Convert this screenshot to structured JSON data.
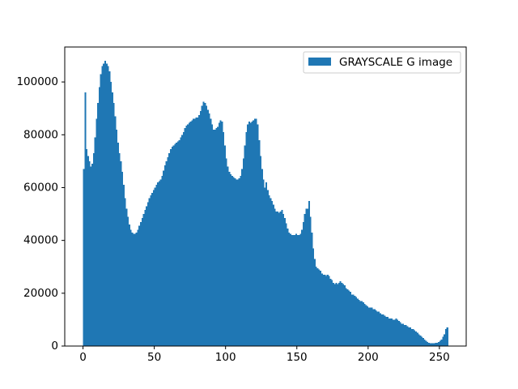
{
  "chart_data": {
    "type": "histogram",
    "legend_loc": "upper right",
    "color": "#1f77b4",
    "series": [
      {
        "name": "GRAYSCALE G image",
        "color": "#1f77b4",
        "values": [
          67000,
          96000,
          74500,
          72000,
          70000,
          68000,
          69000,
          73000,
          79000,
          86000,
          92000,
          98000,
          103000,
          106000,
          107000,
          108000,
          107000,
          106000,
          104000,
          100000,
          96000,
          92000,
          87000,
          82000,
          77000,
          73000,
          70000,
          66000,
          61000,
          56000,
          52000,
          49000,
          46000,
          44000,
          43000,
          42500,
          42500,
          43000,
          44000,
          45500,
          47000,
          48500,
          50000,
          51500,
          53000,
          54500,
          56000,
          57000,
          58000,
          59000,
          60000,
          61000,
          62000,
          62500,
          63000,
          64500,
          66500,
          68500,
          70000,
          71500,
          73000,
          74500,
          75500,
          76000,
          76500,
          77000,
          77500,
          78000,
          79000,
          80000,
          81000,
          82500,
          83500,
          84000,
          84500,
          85000,
          85500,
          86000,
          86000,
          86500,
          86500,
          87500,
          89000,
          91000,
          92500,
          92000,
          91000,
          89500,
          88000,
          86000,
          84000,
          82000,
          82000,
          82500,
          83000,
          84500,
          85500,
          85000,
          81000,
          76000,
          71000,
          68000,
          66000,
          65000,
          64500,
          64000,
          63500,
          63000,
          63000,
          63500,
          64500,
          67000,
          71000,
          76000,
          81000,
          84000,
          85000,
          84500,
          85000,
          85500,
          86000,
          86000,
          84000,
          78000,
          72000,
          67000,
          63000,
          60000,
          62000,
          59000,
          57000,
          56000,
          55000,
          53500,
          52000,
          51000,
          51000,
          50500,
          51000,
          51500,
          50000,
          48500,
          46500,
          44500,
          43000,
          42500,
          42000,
          42000,
          42000,
          42500,
          42000,
          42000,
          42500,
          44000,
          47000,
          50000,
          52000,
          52000,
          55000,
          49000,
          43000,
          37000,
          33000,
          30000,
          29500,
          29000,
          28500,
          27500,
          27000,
          27000,
          26500,
          27000,
          26500,
          25500,
          25000,
          24000,
          23500,
          24000,
          23500,
          24000,
          24500,
          24000,
          23500,
          23000,
          22000,
          21500,
          21000,
          20500,
          19500,
          19500,
          19000,
          18500,
          18000,
          17500,
          17000,
          17000,
          16500,
          16000,
          15500,
          15000,
          14500,
          14500,
          14500,
          14000,
          14000,
          13500,
          13000,
          13000,
          12500,
          12000,
          12000,
          11500,
          11000,
          11000,
          10500,
          10500,
          10500,
          10000,
          10000,
          10500,
          10000,
          9500,
          9000,
          8500,
          8500,
          8000,
          8000,
          7500,
          7000,
          7000,
          6500,
          6500,
          6000,
          5500,
          5000,
          4500,
          4000,
          3500,
          3000,
          2500,
          2000,
          1500,
          1200,
          1100,
          1000,
          1000,
          1100,
          1200,
          1300,
          1500,
          2000,
          2500,
          3500,
          4500,
          6500,
          7000
        ]
      }
    ],
    "bins": [
      0,
      1,
      2,
      3,
      4,
      5,
      6,
      7,
      8,
      9,
      10,
      11,
      12,
      13,
      14,
      15,
      16,
      17,
      18,
      19,
      20,
      21,
      22,
      23,
      24,
      25,
      26,
      27,
      28,
      29,
      30,
      31,
      32,
      33,
      34,
      35,
      36,
      37,
      38,
      39,
      40,
      41,
      42,
      43,
      44,
      45,
      46,
      47,
      48,
      49,
      50,
      51,
      52,
      53,
      54,
      55,
      56,
      57,
      58,
      59,
      60,
      61,
      62,
      63,
      64,
      65,
      66,
      67,
      68,
      69,
      70,
      71,
      72,
      73,
      74,
      75,
      76,
      77,
      78,
      79,
      80,
      81,
      82,
      83,
      84,
      85,
      86,
      87,
      88,
      89,
      90,
      91,
      92,
      93,
      94,
      95,
      96,
      97,
      98,
      99,
      100,
      101,
      102,
      103,
      104,
      105,
      106,
      107,
      108,
      109,
      110,
      111,
      112,
      113,
      114,
      115,
      116,
      117,
      118,
      119,
      120,
      121,
      122,
      123,
      124,
      125,
      126,
      127,
      128,
      129,
      130,
      131,
      132,
      133,
      134,
      135,
      136,
      137,
      138,
      139,
      140,
      141,
      142,
      143,
      144,
      145,
      146,
      147,
      148,
      149,
      150,
      151,
      152,
      153,
      154,
      155,
      156,
      157,
      158,
      159,
      160,
      161,
      162,
      163,
      164,
      165,
      166,
      167,
      168,
      169,
      170,
      171,
      172,
      173,
      174,
      175,
      176,
      177,
      178,
      179,
      180,
      181,
      182,
      183,
      184,
      185,
      186,
      187,
      188,
      189,
      190,
      191,
      192,
      193,
      194,
      195,
      196,
      197,
      198,
      199,
      200,
      201,
      202,
      203,
      204,
      205,
      206,
      207,
      208,
      209,
      210,
      211,
      212,
      213,
      214,
      215,
      216,
      217,
      218,
      219,
      220,
      221,
      222,
      223,
      224,
      225,
      226,
      227,
      228,
      229,
      230,
      231,
      232,
      233,
      234,
      235,
      236,
      237,
      238,
      239,
      240,
      241,
      242,
      243,
      244,
      245,
      246,
      247,
      248,
      249,
      250,
      251,
      252,
      253,
      254,
      255,
      256
    ],
    "xlim": [
      -12.8,
      268.8
    ],
    "xticks": [
      0,
      50,
      100,
      150,
      200,
      250
    ],
    "ylim": [
      0,
      113232
    ],
    "yticks": [
      0,
      20000,
      40000,
      60000,
      80000,
      100000
    ]
  }
}
